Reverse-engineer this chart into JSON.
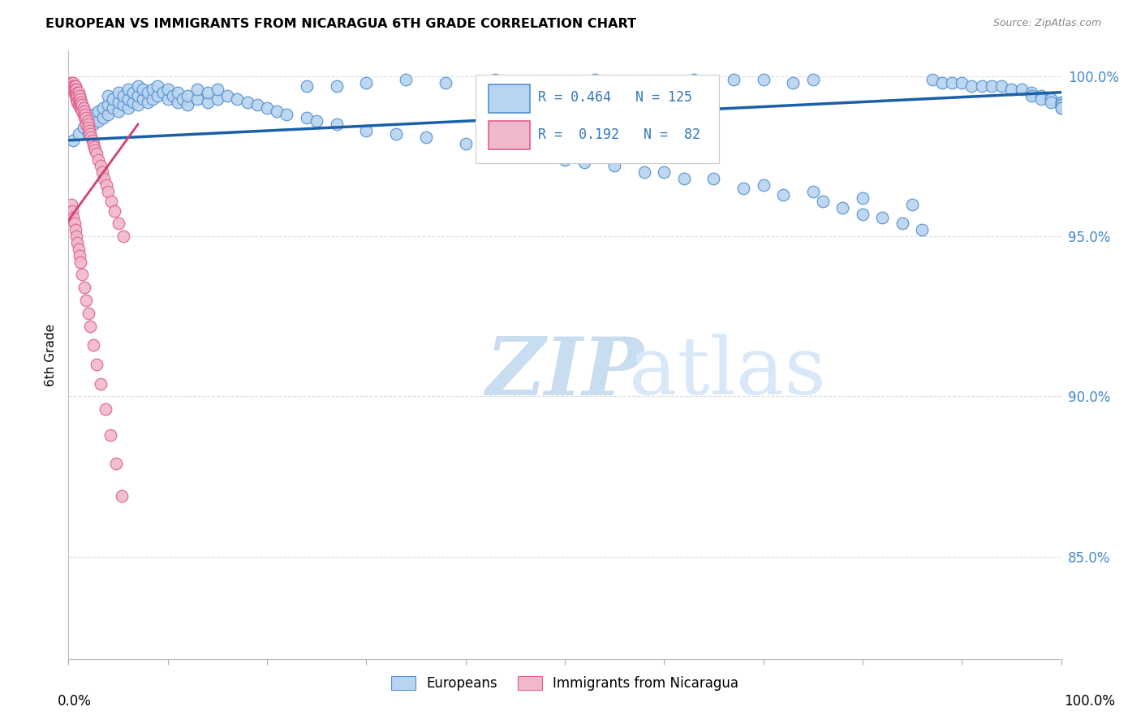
{
  "title": "EUROPEAN VS IMMIGRANTS FROM NICARAGUA 6TH GRADE CORRELATION CHART",
  "source": "Source: ZipAtlas.com",
  "ylabel": "6th Grade",
  "xmin": 0.0,
  "xmax": 1.0,
  "ymin": 0.818,
  "ymax": 1.008,
  "yticks": [
    0.85,
    0.9,
    0.95,
    1.0
  ],
  "ytick_labels": [
    "85.0%",
    "90.0%",
    "95.0%",
    "100.0%"
  ],
  "blue_R": 0.464,
  "blue_N": 125,
  "red_R": 0.192,
  "red_N": 82,
  "legend_labels": [
    "Europeans",
    "Immigrants from Nicaragua"
  ],
  "blue_color": "#b8d4f0",
  "red_color": "#f0b8cc",
  "blue_edge_color": "#5590d0",
  "red_edge_color": "#e06090",
  "blue_line_color": "#1a5fa8",
  "red_line_color": "#d04070",
  "watermark_zip": "ZIP",
  "watermark_atlas": "atlas",
  "watermark_color": "#ddeeff",
  "blue_scatter_x": [
    0.005,
    0.01,
    0.015,
    0.02,
    0.02,
    0.025,
    0.025,
    0.03,
    0.03,
    0.035,
    0.035,
    0.04,
    0.04,
    0.04,
    0.045,
    0.045,
    0.05,
    0.05,
    0.05,
    0.055,
    0.055,
    0.06,
    0.06,
    0.06,
    0.065,
    0.065,
    0.07,
    0.07,
    0.07,
    0.075,
    0.075,
    0.08,
    0.08,
    0.085,
    0.085,
    0.09,
    0.09,
    0.095,
    0.1,
    0.1,
    0.105,
    0.11,
    0.11,
    0.115,
    0.12,
    0.12,
    0.13,
    0.13,
    0.14,
    0.14,
    0.15,
    0.15,
    0.16,
    0.17,
    0.18,
    0.19,
    0.2,
    0.21,
    0.22,
    0.24,
    0.25,
    0.27,
    0.3,
    0.33,
    0.36,
    0.4,
    0.44,
    0.48,
    0.52,
    0.6,
    0.65,
    0.7,
    0.75,
    0.8,
    0.85,
    0.87,
    0.88,
    0.89,
    0.9,
    0.91,
    0.92,
    0.93,
    0.94,
    0.95,
    0.96,
    0.97,
    0.97,
    0.98,
    0.98,
    0.99,
    0.99,
    0.99,
    1.0,
    1.0,
    1.0,
    1.0,
    1.0,
    1.0,
    1.0,
    0.5,
    0.55,
    0.58,
    0.62,
    0.68,
    0.72,
    0.76,
    0.78,
    0.8,
    0.82,
    0.84,
    0.86,
    0.7,
    0.75,
    0.73,
    0.67,
    0.63,
    0.58,
    0.53,
    0.48,
    0.43,
    0.38,
    0.34,
    0.3,
    0.27,
    0.24
  ],
  "blue_scatter_y": [
    0.98,
    0.982,
    0.984,
    0.982,
    0.986,
    0.985,
    0.988,
    0.986,
    0.989,
    0.987,
    0.99,
    0.988,
    0.991,
    0.994,
    0.99,
    0.993,
    0.989,
    0.992,
    0.995,
    0.991,
    0.994,
    0.99,
    0.993,
    0.996,
    0.992,
    0.995,
    0.991,
    0.994,
    0.997,
    0.993,
    0.996,
    0.992,
    0.995,
    0.993,
    0.996,
    0.994,
    0.997,
    0.995,
    0.993,
    0.996,
    0.994,
    0.992,
    0.995,
    0.993,
    0.991,
    0.994,
    0.993,
    0.996,
    0.992,
    0.995,
    0.993,
    0.996,
    0.994,
    0.993,
    0.992,
    0.991,
    0.99,
    0.989,
    0.988,
    0.987,
    0.986,
    0.985,
    0.983,
    0.982,
    0.981,
    0.979,
    0.977,
    0.975,
    0.973,
    0.97,
    0.968,
    0.966,
    0.964,
    0.962,
    0.96,
    0.999,
    0.998,
    0.998,
    0.998,
    0.997,
    0.997,
    0.997,
    0.997,
    0.996,
    0.996,
    0.995,
    0.994,
    0.994,
    0.993,
    0.993,
    0.993,
    0.992,
    0.992,
    0.992,
    0.991,
    0.991,
    0.991,
    0.99,
    0.99,
    0.974,
    0.972,
    0.97,
    0.968,
    0.965,
    0.963,
    0.961,
    0.959,
    0.957,
    0.956,
    0.954,
    0.952,
    0.999,
    0.999,
    0.998,
    0.999,
    0.999,
    0.998,
    0.999,
    0.998,
    0.999,
    0.998,
    0.999,
    0.998,
    0.997,
    0.997
  ],
  "red_scatter_x": [
    0.002,
    0.003,
    0.003,
    0.004,
    0.004,
    0.005,
    0.005,
    0.005,
    0.006,
    0.006,
    0.006,
    0.007,
    0.007,
    0.007,
    0.008,
    0.008,
    0.008,
    0.009,
    0.009,
    0.009,
    0.01,
    0.01,
    0.01,
    0.011,
    0.011,
    0.012,
    0.012,
    0.012,
    0.013,
    0.013,
    0.014,
    0.014,
    0.015,
    0.015,
    0.016,
    0.016,
    0.017,
    0.018,
    0.018,
    0.019,
    0.02,
    0.02,
    0.021,
    0.022,
    0.023,
    0.024,
    0.025,
    0.026,
    0.027,
    0.028,
    0.03,
    0.032,
    0.034,
    0.036,
    0.038,
    0.04,
    0.043,
    0.046,
    0.05,
    0.055,
    0.003,
    0.004,
    0.005,
    0.006,
    0.007,
    0.008,
    0.009,
    0.01,
    0.011,
    0.012,
    0.014,
    0.016,
    0.018,
    0.02,
    0.022,
    0.025,
    0.028,
    0.032,
    0.037,
    0.042,
    0.048,
    0.054
  ],
  "red_scatter_y": [
    0.997,
    0.998,
    0.997,
    0.997,
    0.996,
    0.998,
    0.997,
    0.996,
    0.997,
    0.996,
    0.995,
    0.997,
    0.996,
    0.994,
    0.996,
    0.994,
    0.993,
    0.995,
    0.994,
    0.992,
    0.995,
    0.993,
    0.991,
    0.994,
    0.992,
    0.993,
    0.991,
    0.99,
    0.992,
    0.99,
    0.991,
    0.989,
    0.99,
    0.988,
    0.989,
    0.987,
    0.988,
    0.987,
    0.985,
    0.986,
    0.985,
    0.984,
    0.983,
    0.982,
    0.981,
    0.98,
    0.979,
    0.978,
    0.977,
    0.976,
    0.974,
    0.972,
    0.97,
    0.968,
    0.966,
    0.964,
    0.961,
    0.958,
    0.954,
    0.95,
    0.96,
    0.958,
    0.956,
    0.954,
    0.952,
    0.95,
    0.948,
    0.946,
    0.944,
    0.942,
    0.938,
    0.934,
    0.93,
    0.926,
    0.922,
    0.916,
    0.91,
    0.904,
    0.896,
    0.888,
    0.879,
    0.869
  ]
}
